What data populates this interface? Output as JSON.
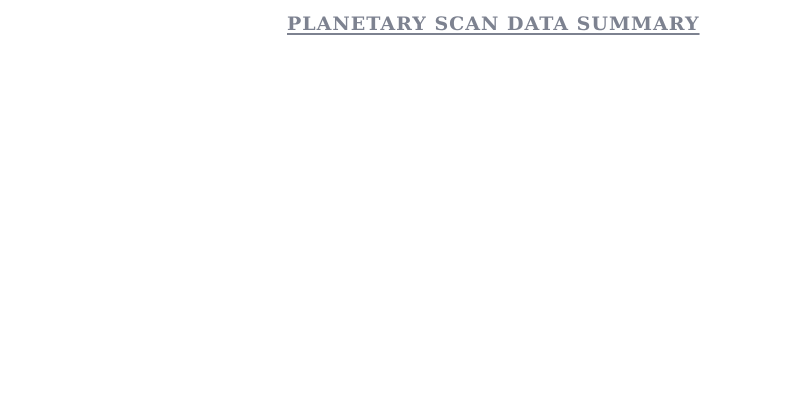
{
  "page": {
    "title": "PLANETARY SCAN DATA SUMMARY"
  },
  "colors": {
    "background": "#ffffff",
    "title_text": "#7d8290"
  }
}
